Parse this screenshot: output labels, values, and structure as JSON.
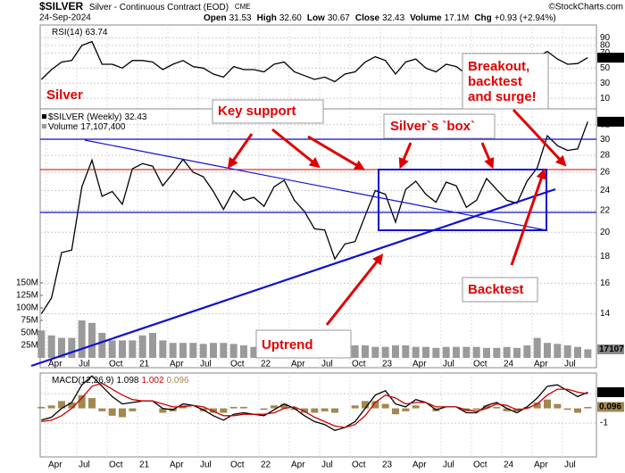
{
  "header": {
    "symbol": "$SILVER",
    "name": "Silver - Continuous Contract (EOD)",
    "exchange": "CME",
    "date": "24-Sep-2024",
    "quote": [
      {
        "label": "Open",
        "value": "31.53"
      },
      {
        "label": "High",
        "value": "32.60"
      },
      {
        "label": "Low",
        "value": "30.67"
      },
      {
        "label": "Close",
        "value": "32.43"
      },
      {
        "label": "Volume",
        "value": "17.1M"
      },
      {
        "label": "Chg",
        "value": "+0.93 (+2.94%)"
      }
    ],
    "watermark": "©StockCharts.com"
  },
  "annotations": {
    "title": "Silver",
    "key_support": "Key support",
    "box": "Silver`s `box`",
    "breakout": [
      "Breakout,",
      "backtest",
      "and surge!"
    ],
    "backtest": "Backtest",
    "uptrend": "Uptrend"
  },
  "chart_data": {
    "type": "stock",
    "x": [
      "2020-03",
      "2020-04",
      "2020-05",
      "2020-06",
      "2020-07",
      "2020-08",
      "2020-09",
      "2020-10",
      "2020-11",
      "2020-12",
      "2021-01",
      "2021-02",
      "2021-03",
      "2021-04",
      "2021-05",
      "2021-06",
      "2021-07",
      "2021-08",
      "2021-09",
      "2021-10",
      "2021-11",
      "2021-12",
      "2022-01",
      "2022-02",
      "2022-03",
      "2022-04",
      "2022-05",
      "2022-06",
      "2022-07",
      "2022-08",
      "2022-09",
      "2022-10",
      "2022-11",
      "2022-12",
      "2023-01",
      "2023-02",
      "2023-03",
      "2023-04",
      "2023-05",
      "2023-06",
      "2023-07",
      "2023-08",
      "2023-09",
      "2023-10",
      "2023-11",
      "2023-12",
      "2024-01",
      "2024-02",
      "2024-03",
      "2024-04",
      "2024-05",
      "2024-06",
      "2024-07",
      "2024-08",
      "2024-09"
    ],
    "xticks": [
      {
        "value": "2020-04",
        "label": "Apr"
      },
      {
        "value": "2020-07",
        "label": "Jul"
      },
      {
        "value": "2020-10",
        "label": "Oct"
      },
      {
        "value": "2021-01",
        "label": "21"
      },
      {
        "value": "2021-04",
        "label": "Apr"
      },
      {
        "value": "2021-07",
        "label": "Jul"
      },
      {
        "value": "2021-10",
        "label": "Oct"
      },
      {
        "value": "2022-01",
        "label": "22"
      },
      {
        "value": "2022-04",
        "label": "Apr"
      },
      {
        "value": "2022-07",
        "label": "Jul"
      },
      {
        "value": "2022-10",
        "label": "Oct"
      },
      {
        "value": "2023-01",
        "label": "23"
      },
      {
        "value": "2023-04",
        "label": "Apr"
      },
      {
        "value": "2023-07",
        "label": "Jul"
      },
      {
        "value": "2023-10",
        "label": "Oct"
      },
      {
        "value": "2024-01",
        "label": "24"
      },
      {
        "value": "2024-04",
        "label": "Apr"
      },
      {
        "value": "2024-07",
        "label": "Jul"
      }
    ],
    "grid": true,
    "panels": {
      "rsi": {
        "label": "RSI(14)",
        "ylim": [
          -4,
          107
        ],
        "yticks": [
          10,
          30,
          50,
          70,
          80,
          90
        ],
        "series": [
          {
            "type": "line",
            "color": "#000000",
            "value_box": true,
            "values": [
              35,
              48,
              58,
              60,
              80,
              85,
              55,
              55,
              50,
              60,
              60,
              58,
              48,
              55,
              60,
              52,
              50,
              42,
              38,
              52,
              48,
              48,
              45,
              55,
              58,
              45,
              40,
              35,
              38,
              32,
              42,
              45,
              58,
              65,
              60,
              42,
              58,
              62,
              50,
              45,
              55,
              52,
              42,
              48,
              58,
              52,
              45,
              45,
              58,
              65,
              72,
              62,
              55,
              56,
              63.74
            ]
          }
        ]
      },
      "price": {
        "log": true,
        "ylim": [
          11.06,
          34.3
        ],
        "yticks": [
          14,
          16,
          18,
          20,
          22,
          24,
          26,
          28,
          30,
          32
        ],
        "y2lim": [
          -19600000,
          498000000
        ],
        "y2ticks": [
          {
            "value": 25000000,
            "label": "25M"
          },
          {
            "value": 50000000,
            "label": "50M"
          },
          {
            "value": 75000000,
            "label": "75M"
          },
          {
            "value": 100000000,
            "label": "100M"
          },
          {
            "value": 125000000,
            "label": "125M"
          },
          {
            "value": 150000000,
            "label": "150M"
          }
        ],
        "series": [
          {
            "name": "$SILVER (Weekly)",
            "type": "line",
            "color": "#000000",
            "value_box": true,
            "values": [
              14.0,
              15.0,
              18.3,
              18.5,
              24.4,
              27.4,
              23.4,
              23.9,
              22.6,
              26.4,
              27.0,
              26.7,
              24.5,
              25.9,
              27.5,
              26.0,
              25.5,
              23.9,
              22.1,
              24.0,
              23.0,
              23.3,
              22.4,
              24.4,
              25.1,
              23.0,
              21.9,
              20.3,
              20.2,
              17.8,
              19.0,
              19.2,
              21.5,
              24.0,
              23.6,
              20.9,
              24.1,
              25.0,
              23.6,
              22.8,
              24.9,
              24.5,
              22.3,
              23.0,
              25.3,
              24.1,
              23.0,
              22.7,
              25.0,
              26.5,
              30.5,
              29.2,
              28.6,
              28.8,
              32.43
            ]
          },
          {
            "name": "Volume",
            "type": "bar",
            "axis": "y2",
            "color": "#9a9a9a",
            "legend_value": "17,107,400",
            "axis_label": "17107",
            "values": [
              55000000,
              45000000,
              40000000,
              40000000,
              75000000,
              70000000,
              50000000,
              35000000,
              35000000,
              35000000,
              45000000,
              50000000,
              35000000,
              30000000,
              30000000,
              30000000,
              28000000,
              30000000,
              30000000,
              28000000,
              25000000,
              22000000,
              25000000,
              28000000,
              30000000,
              25000000,
              25000000,
              25000000,
              22000000,
              25000000,
              25000000,
              25000000,
              25000000,
              22000000,
              22000000,
              25000000,
              25000000,
              22000000,
              22000000,
              20000000,
              22000000,
              22000000,
              22000000,
              22000000,
              20000000,
              20000000,
              22000000,
              20000000,
              25000000,
              40000000,
              30000000,
              28000000,
              25000000,
              22000000,
              17107400
            ]
          }
        ]
      },
      "macd": {
        "label": "MACD(12,26,9)",
        "ylim": [
          -3.3,
          2.4
        ],
        "yticks": [
          -1,
          1
        ],
        "series": [
          {
            "type": "bar",
            "color": "#a08850",
            "value_box": true,
            "values": [
              0.1,
              0.2,
              0.5,
              0.4,
              0.9,
              0.7,
              -0.2,
              -0.5,
              -0.6,
              -0.2,
              0.0,
              0.0,
              -0.3,
              -0.2,
              0.2,
              0.0,
              -0.2,
              -0.3,
              -0.3,
              0.1,
              0.1,
              0.0,
              -0.1,
              0.2,
              0.3,
              -0.1,
              -0.3,
              -0.3,
              -0.2,
              -0.3,
              0.0,
              0.2,
              0.5,
              0.5,
              0.3,
              -0.4,
              -0.2,
              0.2,
              0.0,
              -0.2,
              0.0,
              0.0,
              -0.2,
              -0.1,
              0.2,
              0.1,
              -0.2,
              -0.2,
              0.1,
              0.4,
              0.6,
              0.3,
              -0.1,
              -0.3,
              0.096
            ]
          },
          {
            "type": "line",
            "color": "#000000",
            "value_box": true,
            "values": [
              -0.8,
              -0.6,
              0.0,
              0.4,
              1.6,
              2.2,
              1.5,
              0.8,
              0.3,
              0.4,
              0.5,
              0.5,
              0.0,
              -0.1,
              0.3,
              0.2,
              -0.1,
              -0.5,
              -0.8,
              -0.4,
              -0.3,
              -0.4,
              -0.5,
              -0.1,
              0.3,
              0.0,
              -0.5,
              -0.9,
              -1.1,
              -1.5,
              -1.3,
              -0.9,
              0.0,
              0.9,
              1.2,
              0.3,
              0.1,
              0.6,
              0.4,
              -0.1,
              0.1,
              0.1,
              -0.3,
              -0.3,
              0.2,
              0.4,
              0.0,
              -0.3,
              0.1,
              0.7,
              1.5,
              1.6,
              1.2,
              0.8,
              1.098
            ]
          },
          {
            "type": "line",
            "color": "#cc0000",
            "values": [
              -0.9,
              -0.8,
              -0.5,
              0.0,
              0.7,
              1.5,
              1.7,
              1.3,
              0.9,
              0.6,
              0.5,
              0.5,
              0.3,
              0.1,
              0.1,
              0.2,
              0.1,
              -0.2,
              -0.5,
              -0.5,
              -0.4,
              -0.4,
              -0.4,
              -0.3,
              0.0,
              0.1,
              -0.2,
              -0.6,
              -0.9,
              -1.2,
              -1.3,
              -1.1,
              -0.5,
              0.4,
              0.9,
              0.7,
              0.3,
              0.4,
              0.4,
              0.1,
              0.1,
              0.1,
              -0.1,
              -0.2,
              0.0,
              0.3,
              0.2,
              -0.1,
              0.0,
              0.3,
              0.9,
              1.3,
              1.3,
              1.1,
              1.002
            ]
          }
        ]
      }
    }
  }
}
